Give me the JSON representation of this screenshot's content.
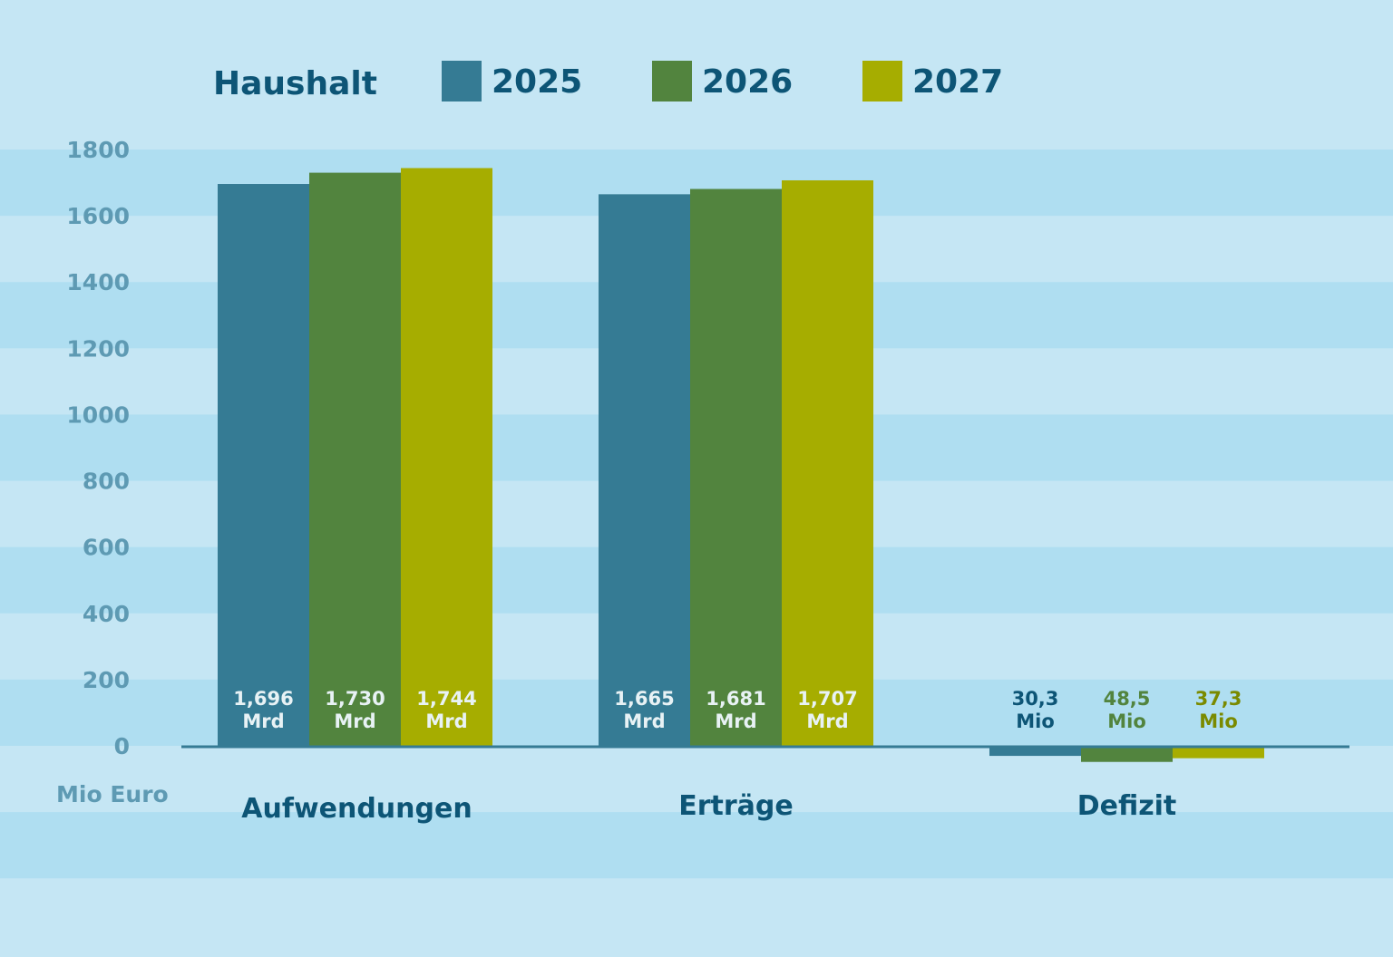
{
  "chart_data": {
    "type": "bar",
    "legend_title": "Haushalt",
    "legend_placement": "top",
    "ylabel": "Mio Euro",
    "ylim": [
      0,
      1800
    ],
    "yticks": [
      0,
      200,
      400,
      600,
      800,
      1000,
      1200,
      1400,
      1600,
      1800
    ],
    "grid": "alternating horizontal bands",
    "categories": [
      "Aufwendungen",
      "Erträge",
      "Defizit"
    ],
    "series": [
      {
        "name": "2025",
        "color": "#357b94",
        "values": [
          1696,
          1665,
          -30.3
        ],
        "labels": [
          [
            "1,696",
            "Mrd"
          ],
          [
            "1,665",
            "Mrd"
          ],
          [
            "30,3",
            "Mio"
          ]
        ]
      },
      {
        "name": "2026",
        "color": "#52843e",
        "values": [
          1730,
          1681,
          -48.5
        ],
        "labels": [
          [
            "1,730",
            "Mrd"
          ],
          [
            "1,681",
            "Mrd"
          ],
          [
            "48,5",
            "Mio"
          ]
        ]
      },
      {
        "name": "2027",
        "color": "#a6ad00",
        "values": [
          1744,
          1707,
          -37.3
        ],
        "labels": [
          [
            "1,744",
            "Mrd"
          ],
          [
            "1,707",
            "Mrd"
          ],
          [
            "37,3",
            "Mio"
          ]
        ]
      }
    ],
    "deficit_label_colors": [
      "#0d5576",
      "#52843e",
      "#7a8a00"
    ],
    "background_colors": [
      "#c5e6f4",
      "#afdef1"
    ],
    "text_color": "#0d5576"
  }
}
